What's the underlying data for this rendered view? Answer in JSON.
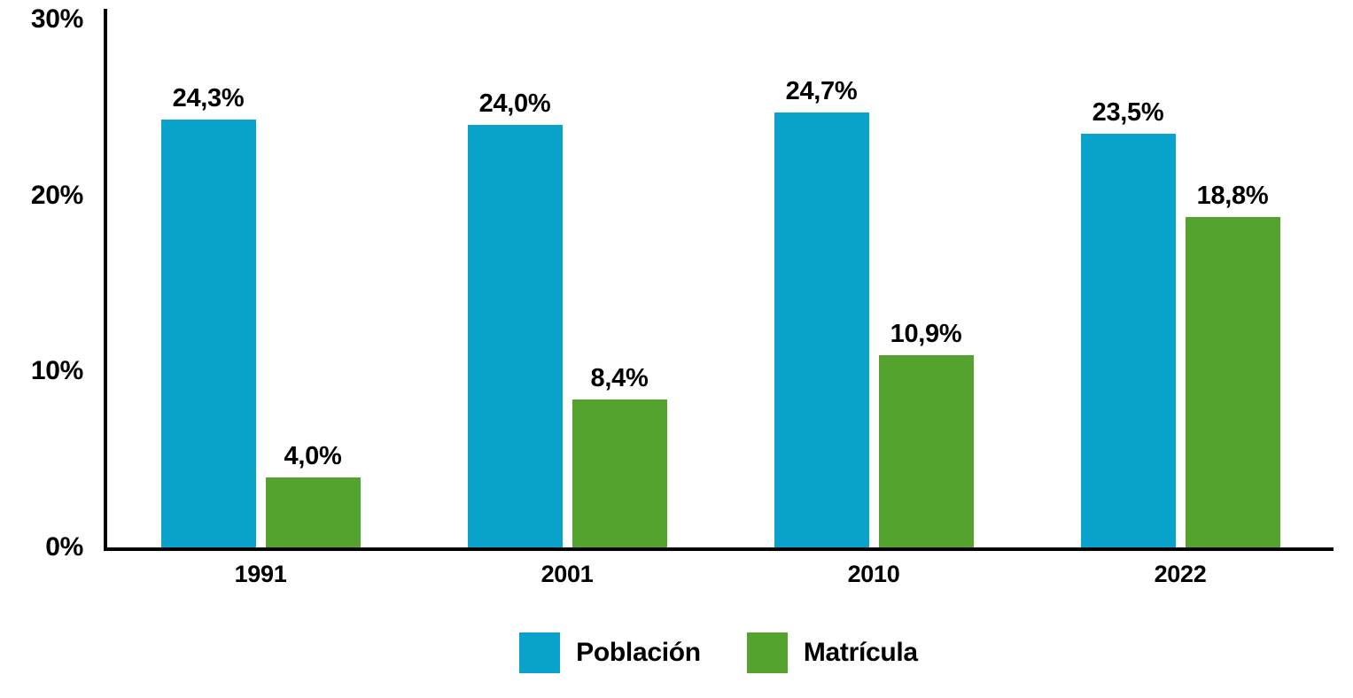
{
  "chart_data": {
    "type": "bar",
    "title": "",
    "categories": [
      "1991",
      "2001",
      "2010",
      "2022"
    ],
    "series": [
      {
        "key": "poblacion",
        "name": "Población",
        "color": "#09A2CA",
        "values": [
          24.3,
          24.0,
          24.7,
          23.5
        ],
        "labels": [
          "24,3%",
          "24,0%",
          "24,7%",
          "23,5%"
        ]
      },
      {
        "key": "matricula",
        "name": "Matrícula",
        "color": "#55A32F",
        "values": [
          4.0,
          8.4,
          10.9,
          18.8
        ],
        "labels": [
          "4,0%",
          "8,4%",
          "10,9%",
          "18,8%"
        ]
      }
    ],
    "xlabel": "",
    "ylabel": "",
    "ylim": [
      0,
      30
    ],
    "yticks": [
      {
        "value": 0,
        "label": "0%"
      },
      {
        "value": 10,
        "label": "10%"
      },
      {
        "value": 20,
        "label": "20%"
      },
      {
        "value": 30,
        "label": "30%"
      }
    ],
    "grid": false,
    "legend_position": "bottom",
    "value_label_decimal_separator": ","
  },
  "colors": {
    "background": "#FFFFFF",
    "axis": "#000000",
    "text": "#000000"
  }
}
